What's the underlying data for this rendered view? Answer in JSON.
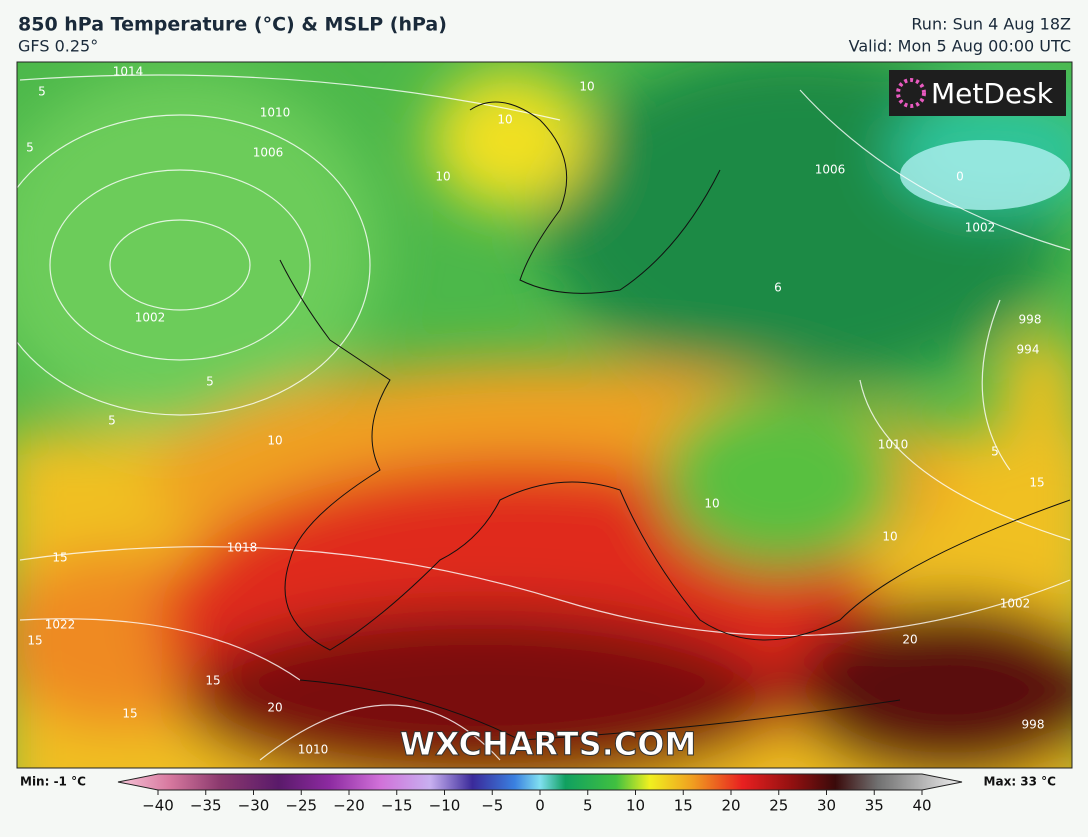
{
  "header": {
    "title": "850 hPa Temperature (°C) & MSLP (hPa)",
    "subtitle": "GFS 0.25°",
    "run": "Run: Sun 4 Aug 18Z",
    "valid": "Valid: Mon 5 Aug 00:00 UTC"
  },
  "map": {
    "logo": "MetDesk",
    "watermark": "WXCHARTS.COM",
    "contour_labels": [
      "1014",
      "5",
      "5",
      "1010",
      "1006",
      "1002",
      "5",
      "5",
      "10",
      "10",
      "1018",
      "15",
      "1022",
      "15",
      "15",
      "15",
      "20",
      "10",
      "1006",
      "1002",
      "0",
      "998",
      "994",
      "1010",
      "5",
      "15",
      "10",
      "10",
      "1002",
      "20",
      "998",
      "1010",
      "6",
      "10"
    ]
  },
  "legend": {
    "min": "Min: -1 °C",
    "max": "Max: 33 °C",
    "range": [
      -40,
      40
    ],
    "ticks": [
      {
        "value": -40,
        "label": "−40"
      },
      {
        "value": -35,
        "label": "−35"
      },
      {
        "value": -30,
        "label": "−30"
      },
      {
        "value": -25,
        "label": "−25"
      },
      {
        "value": -20,
        "label": "−20"
      },
      {
        "value": -15,
        "label": "−15"
      },
      {
        "value": -10,
        "label": "−10"
      },
      {
        "value": -5,
        "label": "−5"
      },
      0,
      5,
      10,
      15,
      20,
      25,
      30,
      35,
      40
    ]
  }
}
